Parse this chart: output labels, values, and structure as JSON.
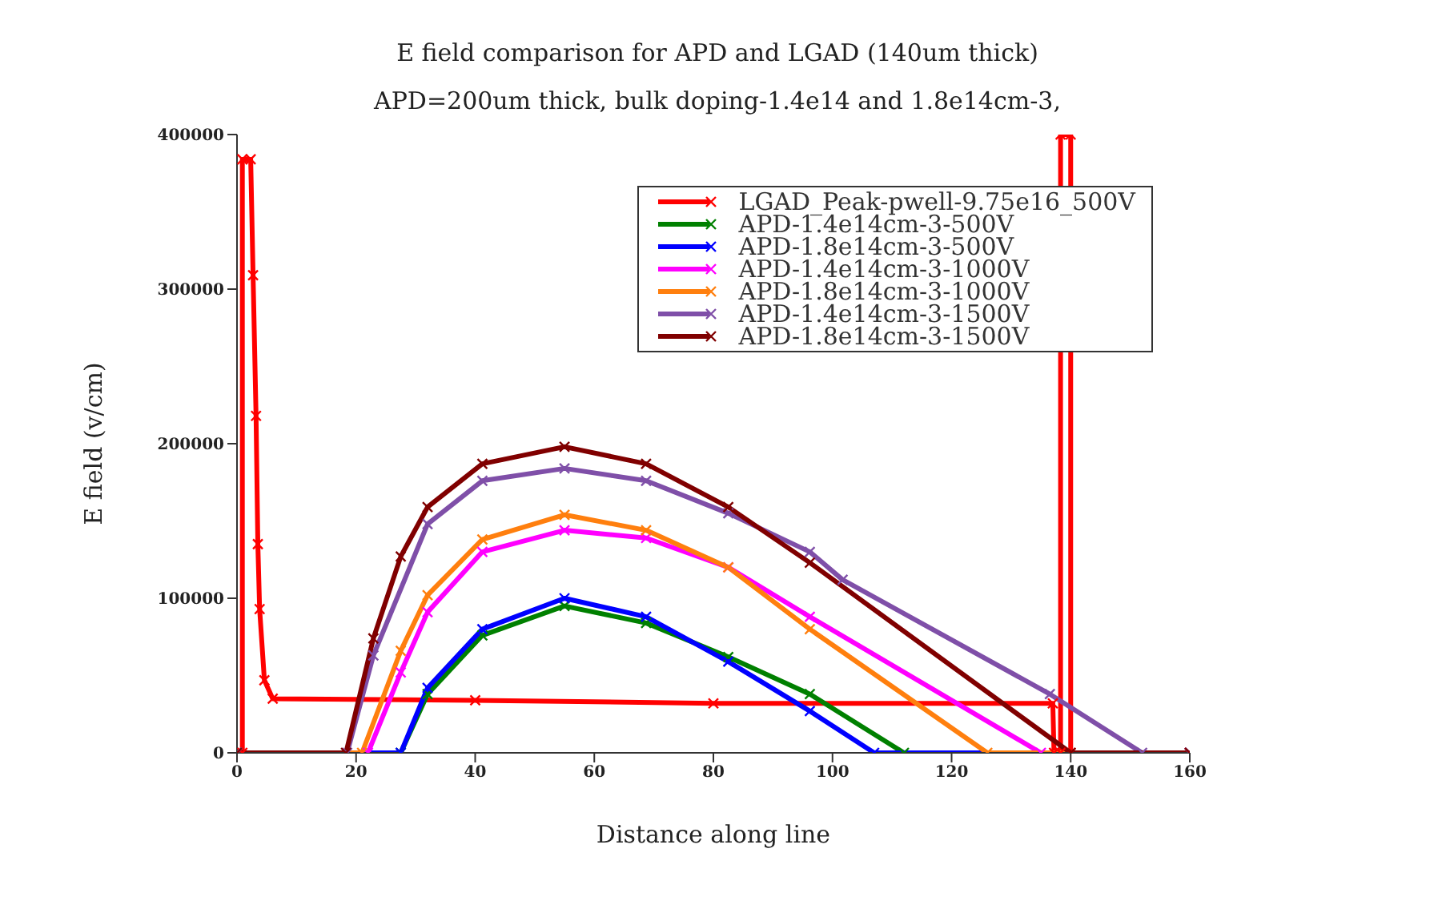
{
  "chart_data": {
    "type": "line",
    "title": "E field comparison for APD and LGAD (140um thick)",
    "subtitle": "APD=200um thick, bulk doping-1.4e14 and 1.8e14cm-3,",
    "xlabel": "Distance along line",
    "ylabel": "E field (v/cm)",
    "xlim": [
      0,
      160
    ],
    "ylim": [
      0,
      400000
    ],
    "xticks": [
      0,
      20,
      40,
      60,
      80,
      100,
      120,
      140,
      160
    ],
    "yticks": [
      0,
      100000,
      200000,
      300000,
      400000
    ],
    "legend": "top right",
    "marker": "cross",
    "line_style": "solid",
    "series": [
      {
        "name": "LGAD_Peak-pwell-9.75e16_500V",
        "color": "#ff0000",
        "x": [
          0.9,
          0.9,
          2.3,
          2.7,
          3.2,
          3.5,
          3.8,
          4.6,
          6,
          40,
          80,
          137,
          137.2,
          138.3,
          138.3,
          140,
          140
        ],
        "values": [
          0,
          384000,
          384000,
          309000,
          218000,
          135000,
          93000,
          47000,
          35000,
          34000,
          32000,
          32000,
          0,
          0,
          400000,
          400000,
          0
        ]
      },
      {
        "name": "APD-1.4e14cm-3-500V",
        "color": "#008000",
        "x": [
          0,
          27.5,
          32,
          41.2,
          55,
          68.7,
          82.5,
          96.2,
          112,
          160
        ],
        "values": [
          0,
          0,
          38000,
          76000,
          95000,
          84000,
          62000,
          38000,
          0,
          0
        ]
      },
      {
        "name": "APD-1.8e14cm-3-500V",
        "color": "#0000ff",
        "x": [
          0,
          27.5,
          32,
          41.2,
          55,
          68.7,
          82.5,
          96.2,
          107,
          160
        ],
        "values": [
          0,
          0,
          42000,
          80000,
          100000,
          88000,
          59000,
          27000,
          0,
          0
        ]
      },
      {
        "name": "APD-1.4e14cm-3-1000V",
        "color": "#ff00ff",
        "x": [
          0,
          22,
          27.5,
          32,
          41.2,
          55,
          68.7,
          82.5,
          96.2,
          135,
          160
        ],
        "values": [
          0,
          0,
          52000,
          91000,
          130000,
          144000,
          139000,
          120000,
          88000,
          0,
          0
        ]
      },
      {
        "name": "APD-1.8e14cm-3-1000V",
        "color": "#ff7f0e",
        "x": [
          0,
          21,
          27.5,
          32,
          41.2,
          55,
          68.7,
          82.5,
          96.2,
          126,
          160
        ],
        "values": [
          0,
          0,
          66000,
          102000,
          138000,
          154000,
          144000,
          120000,
          80000,
          0,
          0
        ]
      },
      {
        "name": "APD-1.4e14cm-3-1500V",
        "color": "#7f4fa8",
        "x": [
          0,
          18.5,
          22.9,
          32,
          41.2,
          55,
          68.7,
          82.5,
          96.2,
          101.7,
          136.5,
          152,
          160
        ],
        "values": [
          0,
          0,
          63000,
          148000,
          176000,
          184000,
          176000,
          155000,
          130000,
          112000,
          38000,
          0,
          0
        ]
      },
      {
        "name": "APD-1.8e14cm-3-1500V",
        "color": "#800000",
        "x": [
          0,
          18.3,
          22.9,
          27.5,
          32,
          41.2,
          55,
          68.7,
          82.5,
          96.2,
          140,
          160
        ],
        "values": [
          0,
          0,
          74000,
          127000,
          159000,
          187000,
          198000,
          187000,
          159000,
          123000,
          0,
          0
        ]
      }
    ]
  }
}
